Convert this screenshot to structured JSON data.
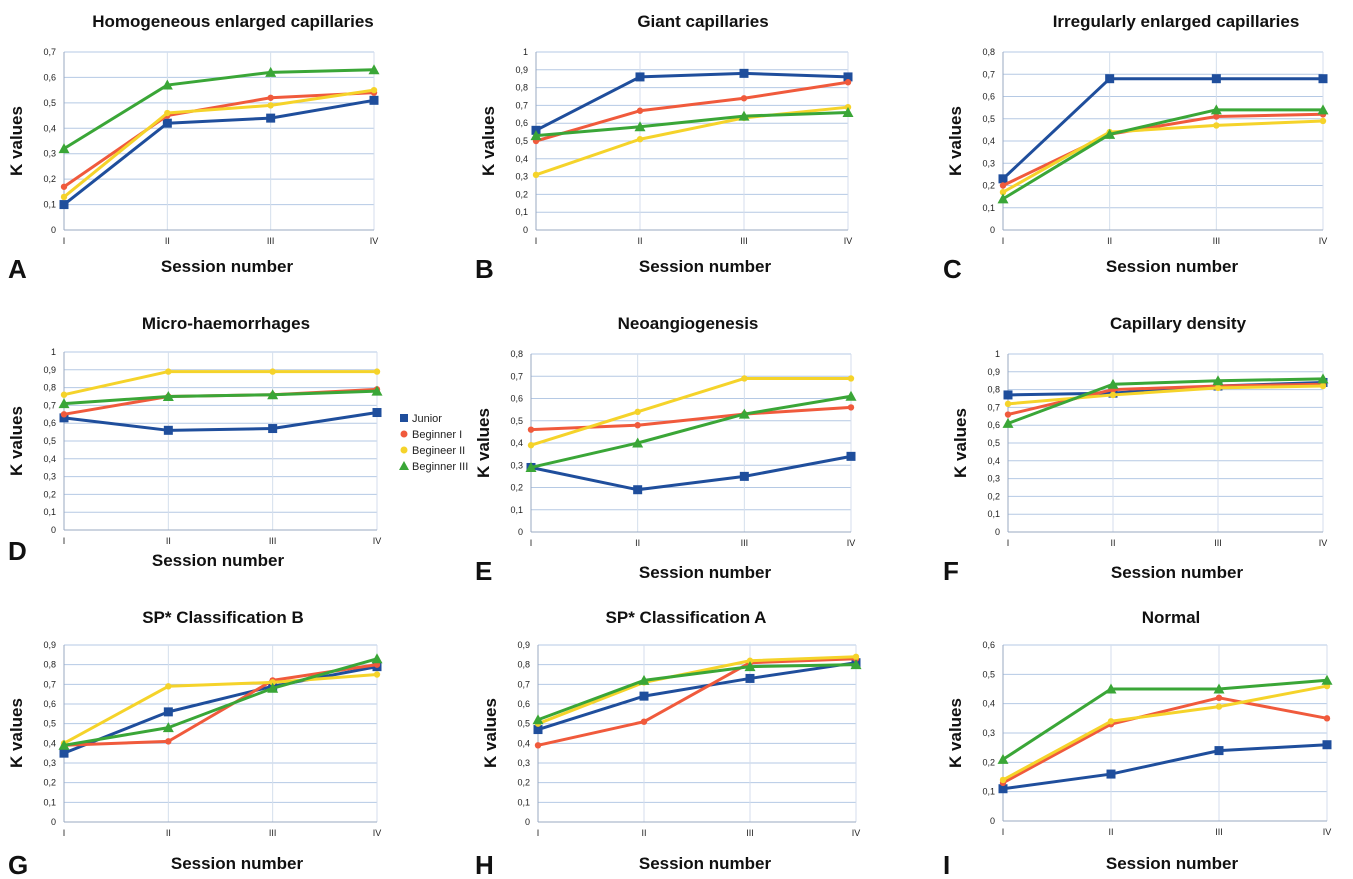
{
  "series_colors": {
    "Junior": "#1f4e9c",
    "Beginner I": "#f05a3c",
    "Begineer II": "#f5d32a",
    "Beginner III": "#3aa637"
  },
  "legend": [
    "Junior",
    "Beginner I",
    "Begineer II",
    "Beginner III"
  ],
  "chart_data": [
    {
      "type": "line",
      "letter": "A",
      "title": "Homogeneous enlarged capillaries",
      "xlabel": "Session number",
      "ylabel": "K values",
      "categories": [
        "I",
        "II",
        "III",
        "IV"
      ],
      "ylim": [
        0,
        0.7
      ],
      "yticks": [
        "0",
        "0,1",
        "0,2",
        "0,3",
        "0,4",
        "0,5",
        "0,6",
        "0,7"
      ],
      "series": [
        {
          "name": "Junior",
          "values": [
            0.1,
            0.42,
            0.44,
            0.51
          ]
        },
        {
          "name": "Beginner I",
          "values": [
            0.17,
            0.45,
            0.52,
            0.54
          ]
        },
        {
          "name": "Begineer II",
          "values": [
            0.13,
            0.46,
            0.49,
            0.55
          ]
        },
        {
          "name": "Beginner III",
          "values": [
            0.32,
            0.57,
            0.62,
            0.63
          ]
        }
      ]
    },
    {
      "type": "line",
      "letter": "B",
      "title": "Giant capillaries",
      "xlabel": "Session number",
      "ylabel": "K values",
      "categories": [
        "I",
        "II",
        "III",
        "IV"
      ],
      "ylim": [
        0,
        1
      ],
      "yticks": [
        "0",
        "0,1",
        "0,2",
        "0,3",
        "0,4",
        "0,5",
        "0,6",
        "0,7",
        "0,8",
        "0,9",
        "1"
      ],
      "series": [
        {
          "name": "Junior",
          "values": [
            0.56,
            0.86,
            0.88,
            0.86
          ]
        },
        {
          "name": "Beginner I",
          "values": [
            0.5,
            0.67,
            0.74,
            0.83
          ]
        },
        {
          "name": "Begineer II",
          "values": [
            0.31,
            0.51,
            0.63,
            0.69
          ]
        },
        {
          "name": "Beginner III",
          "values": [
            0.53,
            0.58,
            0.64,
            0.66
          ]
        }
      ]
    },
    {
      "type": "line",
      "letter": "C",
      "title": "Irregularly enlarged capillaries",
      "xlabel": "Session number",
      "ylabel": "K values",
      "categories": [
        "I",
        "II",
        "III",
        "IV"
      ],
      "ylim": [
        0,
        0.8
      ],
      "yticks": [
        "0",
        "0,1",
        "0,2",
        "0,3",
        "0,4",
        "0,5",
        "0,6",
        "0,7",
        "0,8"
      ],
      "series": [
        {
          "name": "Junior",
          "values": [
            0.23,
            0.68,
            0.68,
            0.68
          ]
        },
        {
          "name": "Beginner I",
          "values": [
            0.2,
            0.43,
            0.51,
            0.52
          ]
        },
        {
          "name": "Begineer II",
          "values": [
            0.17,
            0.44,
            0.47,
            0.49
          ]
        },
        {
          "name": "Beginner III",
          "values": [
            0.14,
            0.43,
            0.54,
            0.54
          ]
        }
      ]
    },
    {
      "type": "line",
      "letter": "D",
      "title": "Micro-haemorrhages",
      "xlabel": "Session number",
      "ylabel": "K values",
      "categories": [
        "I",
        "II",
        "III",
        "IV"
      ],
      "ylim": [
        0,
        1
      ],
      "yticks": [
        "0",
        "0,1",
        "0,2",
        "0,3",
        "0,4",
        "0,5",
        "0,6",
        "0,7",
        "0,8",
        "0,9",
        "1"
      ],
      "series": [
        {
          "name": "Junior",
          "values": [
            0.63,
            0.56,
            0.57,
            0.66
          ]
        },
        {
          "name": "Beginner I",
          "values": [
            0.65,
            0.75,
            0.76,
            0.79
          ]
        },
        {
          "name": "Begineer II",
          "values": [
            0.76,
            0.89,
            0.89,
            0.89
          ]
        },
        {
          "name": "Beginner III",
          "values": [
            0.71,
            0.75,
            0.76,
            0.78
          ]
        }
      ]
    },
    {
      "type": "line",
      "letter": "E",
      "title": "Neoangiogenesis",
      "xlabel": "Session number",
      "ylabel": "K values",
      "categories": [
        "I",
        "II",
        "III",
        "IV"
      ],
      "ylim": [
        0,
        0.8
      ],
      "yticks": [
        "0",
        "0,1",
        "0,2",
        "0,3",
        "0,4",
        "0,5",
        "0,6",
        "0,7",
        "0,8"
      ],
      "series": [
        {
          "name": "Junior",
          "values": [
            0.29,
            0.19,
            0.25,
            0.34
          ]
        },
        {
          "name": "Beginner I",
          "values": [
            0.46,
            0.48,
            0.53,
            0.56
          ]
        },
        {
          "name": "Begineer II",
          "values": [
            0.39,
            0.54,
            0.69,
            0.69
          ]
        },
        {
          "name": "Beginner III",
          "values": [
            0.29,
            0.4,
            0.53,
            0.61
          ]
        }
      ]
    },
    {
      "type": "line",
      "letter": "F",
      "title": "Capillary density",
      "xlabel": "Session number",
      "ylabel": "K values",
      "categories": [
        "I",
        "II",
        "III",
        "IV"
      ],
      "ylim": [
        0,
        1
      ],
      "yticks": [
        "0",
        "0,1",
        "0,2",
        "0,3",
        "0,4",
        "0,5",
        "0,6",
        "0,7",
        "0,8",
        "0,9",
        "1"
      ],
      "series": [
        {
          "name": "Junior",
          "values": [
            0.77,
            0.78,
            0.82,
            0.84
          ]
        },
        {
          "name": "Beginner I",
          "values": [
            0.66,
            0.8,
            0.82,
            0.83
          ]
        },
        {
          "name": "Begineer II",
          "values": [
            0.72,
            0.77,
            0.81,
            0.82
          ]
        },
        {
          "name": "Beginner III",
          "values": [
            0.61,
            0.83,
            0.85,
            0.86
          ]
        }
      ]
    },
    {
      "type": "line",
      "letter": "G",
      "title": "SP* Classification B",
      "xlabel": "Session number",
      "ylabel": "K values",
      "categories": [
        "I",
        "II",
        "III",
        "IV"
      ],
      "ylim": [
        0,
        0.9
      ],
      "yticks": [
        "0",
        "0,1",
        "0,2",
        "0,3",
        "0,4",
        "0,5",
        "0,6",
        "0,7",
        "0,8",
        "0,9"
      ],
      "series": [
        {
          "name": "Junior",
          "values": [
            0.35,
            0.56,
            0.69,
            0.79
          ]
        },
        {
          "name": "Beginner I",
          "values": [
            0.39,
            0.41,
            0.72,
            0.8
          ]
        },
        {
          "name": "Begineer II",
          "values": [
            0.4,
            0.69,
            0.71,
            0.75
          ]
        },
        {
          "name": "Beginner III",
          "values": [
            0.39,
            0.48,
            0.68,
            0.83
          ]
        }
      ]
    },
    {
      "type": "line",
      "letter": "H",
      "title": "SP* Classification A",
      "xlabel": "Session number",
      "ylabel": "K values",
      "categories": [
        "I",
        "II",
        "III",
        "IV"
      ],
      "ylim": [
        0,
        0.9
      ],
      "yticks": [
        "0",
        "0,1",
        "0,2",
        "0,3",
        "0,4",
        "0,5",
        "0,6",
        "0,7",
        "0,8",
        "0,9"
      ],
      "series": [
        {
          "name": "Junior",
          "values": [
            0.47,
            0.64,
            0.73,
            0.81
          ]
        },
        {
          "name": "Beginner I",
          "values": [
            0.39,
            0.51,
            0.81,
            0.83
          ]
        },
        {
          "name": "Begineer II",
          "values": [
            0.5,
            0.71,
            0.82,
            0.84
          ]
        },
        {
          "name": "Beginner III",
          "values": [
            0.52,
            0.72,
            0.79,
            0.8
          ]
        }
      ]
    },
    {
      "type": "line",
      "letter": "I",
      "title": "Normal",
      "xlabel": "Session number",
      "ylabel": "K values",
      "categories": [
        "I",
        "II",
        "III",
        "IV"
      ],
      "ylim": [
        0,
        0.6
      ],
      "yticks": [
        "0",
        "0,1",
        "0,2",
        "0,3",
        "0,4",
        "0,5",
        "0,6"
      ],
      "series": [
        {
          "name": "Junior",
          "values": [
            0.11,
            0.16,
            0.24,
            0.26
          ]
        },
        {
          "name": "Beginner I",
          "values": [
            0.13,
            0.33,
            0.42,
            0.35
          ]
        },
        {
          "name": "Begineer II",
          "values": [
            0.14,
            0.34,
            0.39,
            0.46
          ]
        },
        {
          "name": "Beginner III",
          "values": [
            0.21,
            0.45,
            0.45,
            0.48
          ]
        }
      ]
    }
  ]
}
